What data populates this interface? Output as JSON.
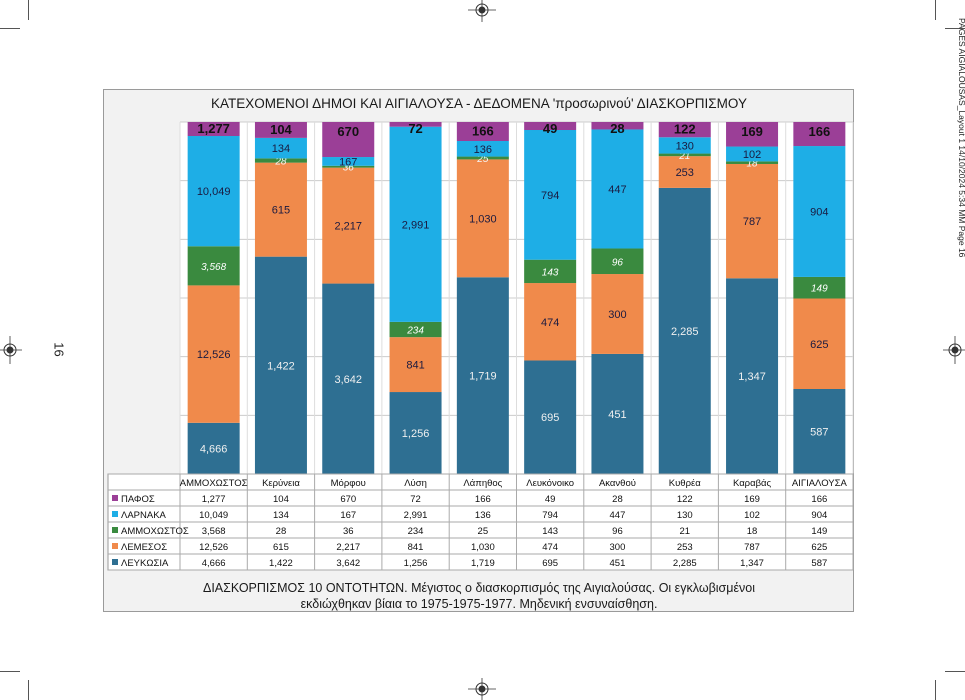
{
  "page": {
    "side_meta": "PAGES AIGIALOUSAS_Layout 1  14/10/2024  5:34 ΜΜ  Page 16",
    "page_number": "16"
  },
  "chart_data": {
    "type": "bar",
    "stacked": true,
    "title": "ΚΑΤΕΧΟΜΕΝΟΙ  ΔΗΜΟΙ  ΚΑΙ  ΑΙΓΙΑΛΟΥΣΑ  - ΔΕΔΟΜΕΝΑ 'προσωρινού'  ΔΙΑΣΚΟΡΠΙΣΜΟΥ",
    "categories": [
      "ΑΜΜΟΧΩΣΤΟΣ",
      "Κερύνεια",
      "Μόρφου",
      "Λύση",
      "Λάπηθος",
      "Λευκόνοικο",
      "Ακανθού",
      "Κυθρέα",
      "Καραβάς",
      "ΑΙΓΙΑΛΟΥΣΑ"
    ],
    "series": [
      {
        "name": "ΛΕΥΚΩΣΙΑ",
        "color": "#2e6f92",
        "values": [
          4666,
          1422,
          3642,
          1256,
          1719,
          695,
          451,
          2285,
          1347,
          587
        ],
        "labels": [
          "4,666",
          "1,422",
          "3,642",
          "1,256",
          "1,719",
          "695",
          "451",
          "2,285",
          "1,347",
          "587"
        ]
      },
      {
        "name": "ΛΕΜΕΣΟΣ",
        "color": "#f08a4b",
        "values": [
          12526,
          615,
          2217,
          841,
          1030,
          474,
          300,
          253,
          787,
          625
        ],
        "labels": [
          "12,526",
          "615",
          "2,217",
          "841",
          "1,030",
          "474",
          "300",
          "253",
          "787",
          "625"
        ]
      },
      {
        "name": "ΑΜΜΟΧΩΣΤΟΣ",
        "color": "#3a8a3f",
        "values": [
          3568,
          28,
          36,
          234,
          25,
          143,
          96,
          21,
          18,
          149
        ],
        "labels": [
          "3,568",
          "28",
          "36",
          "234",
          "25",
          "143",
          "96",
          "21",
          "18",
          "149"
        ]
      },
      {
        "name": "ΛΑΡΝΑΚΑ",
        "color": "#1eaee6",
        "values": [
          10049,
          134,
          167,
          2991,
          136,
          794,
          447,
          130,
          102,
          904
        ],
        "labels": [
          "10,049",
          "134",
          "167",
          "2,991",
          "136",
          "794",
          "447",
          "130",
          "102",
          "904"
        ]
      },
      {
        "name": "ΠΑΦΟΣ",
        "color": "#9b3f97",
        "values": [
          1277,
          104,
          670,
          72,
          166,
          49,
          28,
          122,
          169,
          166
        ],
        "labels": [
          "1,277",
          "104",
          "670",
          "72",
          "166",
          "49",
          "28",
          "122",
          "169",
          "166"
        ]
      }
    ],
    "legend_placement": "table-left",
    "grid": true,
    "footer_line1": "ΔΙΑΣΚΟΡΠΙΣΜΟΣ 10 ΟΝΤΟΤΗΤΩΝ.  Μέγιστος ο διασκορπισμός της Αιγιαλούσας.  Οι εγκλωβισμένοι",
    "footer_line2": "εκδιώχθηκαν βίαια το 1975-1975-1977. Μηδενική ενσυναίσθηση."
  }
}
